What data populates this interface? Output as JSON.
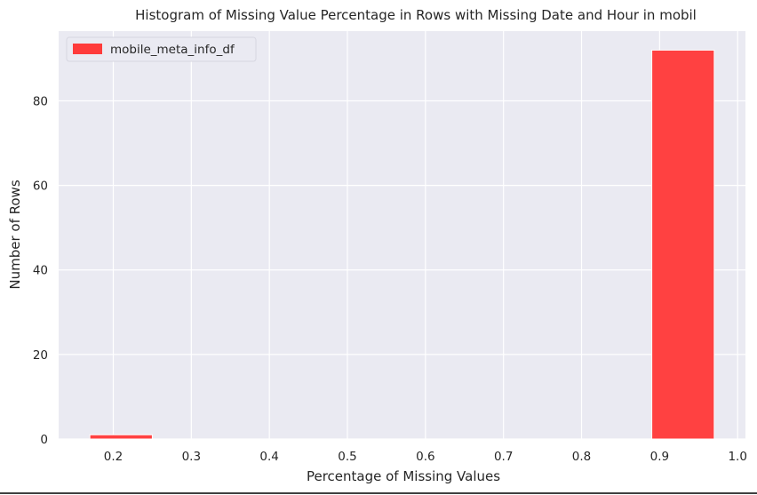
{
  "chart_data": {
    "type": "bar",
    "title": "Histogram of Missing Value Percentage in Rows with Missing Date and Hour in mobil",
    "xlabel": "Percentage of Missing Values",
    "ylabel": "Number of Rows",
    "xlim": [
      0.13,
      1.01
    ],
    "ylim": [
      0,
      96.5
    ],
    "x_ticks": [
      "0.2",
      "0.3",
      "0.4",
      "0.5",
      "0.6",
      "0.7",
      "0.8",
      "0.9",
      "1.0"
    ],
    "y_ticks": [
      "0",
      "20",
      "40",
      "60",
      "80"
    ],
    "grid": true,
    "legend_position": "top-left",
    "series": [
      {
        "name": "mobile_meta_info_df",
        "color": "#ff3b3b",
        "bins": [
          {
            "x0": 0.17,
            "x1": 0.25,
            "value": 1
          },
          {
            "x0": 0.89,
            "x1": 0.97,
            "value": 92
          }
        ]
      }
    ]
  }
}
